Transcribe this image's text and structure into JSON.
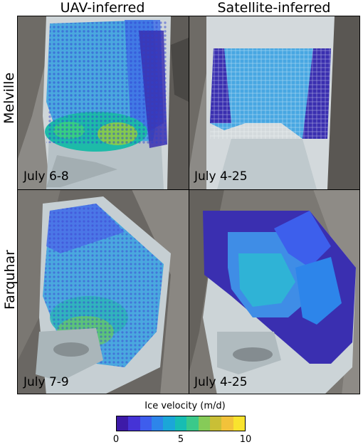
{
  "columns": {
    "uav": "UAV-inferred",
    "satellite": "Satellite-inferred"
  },
  "rows": {
    "melville": "Melville",
    "farquhar": "Farquhar"
  },
  "panels": {
    "melville_uav": "July 6-8",
    "melville_sat": "July 4-25",
    "farquhar_uav": "July 7-9",
    "farquhar_sat": "July 4-25"
  },
  "legend": {
    "title": "Ice velocity (m/d)",
    "ticks": [
      "0",
      "5",
      "10"
    ],
    "tick_values": [
      0,
      5,
      10
    ],
    "range": [
      0,
      10
    ],
    "colors": [
      "#3d1aa8",
      "#4533d6",
      "#3e5ded",
      "#2d85ea",
      "#1ba6d8",
      "#17bdb3",
      "#3bc98a",
      "#86cb58",
      "#c9bf36",
      "#f2c23a",
      "#f9e32e"
    ]
  }
}
